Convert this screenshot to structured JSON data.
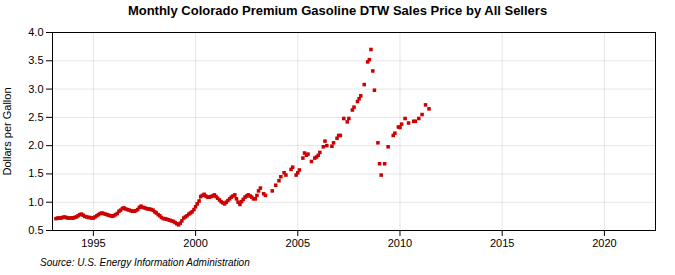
{
  "chart_data": {
    "type": "scatter",
    "title": "Monthly Colorado Premium Gasoline DTW Sales Price by All Sellers",
    "ylabel": "Dollars per Gallon",
    "source": "Source: U.S. Energy Information Administration",
    "xlim": [
      1993.0,
      2022.5
    ],
    "ylim": [
      0.5,
      4.0
    ],
    "xticks": [
      1995,
      2000,
      2005,
      2010,
      2015,
      2020
    ],
    "yticks": [
      0.5,
      {
        "value": 1.0,
        "label": "1.0"
      },
      1.5,
      {
        "value": 2.0,
        "label": "2.0"
      },
      2.5,
      {
        "value": 3.0,
        "label": "3.0"
      },
      3.5,
      {
        "value": 4.0,
        "label": "4.0"
      }
    ],
    "grid": true,
    "series": [
      {
        "type": "line",
        "marker": "square",
        "line_style": "solid",
        "color": "#cc0000",
        "x": [
          1993.17,
          1993.25,
          1993.33,
          1993.42,
          1993.5,
          1993.58,
          1993.67,
          1993.75,
          1993.83,
          1993.92,
          1994.0,
          1994.08,
          1994.17,
          1994.25,
          1994.33,
          1994.42,
          1994.5,
          1994.58,
          1994.67,
          1994.75,
          1994.83,
          1994.92,
          1995.0,
          1995.08,
          1995.17,
          1995.25,
          1995.33,
          1995.42,
          1995.5,
          1995.58,
          1995.67,
          1995.75,
          1995.83,
          1995.92,
          1996.0,
          1996.08,
          1996.17,
          1996.25,
          1996.33,
          1996.42,
          1996.5,
          1996.58,
          1996.67,
          1996.75,
          1996.83,
          1996.92,
          1997.0,
          1997.08,
          1997.17,
          1997.25,
          1997.33,
          1997.42,
          1997.5,
          1997.58,
          1997.67,
          1997.75,
          1997.83,
          1997.92,
          1998.0,
          1998.08,
          1998.17,
          1998.25,
          1998.33,
          1998.42,
          1998.5,
          1998.58,
          1998.67,
          1998.75,
          1998.83,
          1998.92,
          1999.0,
          1999.08,
          1999.17,
          1999.25,
          1999.33,
          1999.42,
          1999.5,
          1999.58,
          1999.67,
          1999.75,
          1999.83,
          1999.92,
          2000.0,
          2000.08,
          2000.17,
          2000.25,
          2000.33,
          2000.42,
          2000.5,
          2000.58,
          2000.67,
          2000.75,
          2000.83,
          2000.92,
          2001.0,
          2001.08,
          2001.17,
          2001.25,
          2001.33,
          2001.42,
          2001.5,
          2001.58,
          2001.67,
          2001.75,
          2001.83,
          2001.92,
          2002.0,
          2002.08,
          2002.17,
          2002.25,
          2002.33,
          2002.42,
          2002.5,
          2002.58,
          2002.67,
          2002.75,
          2002.83,
          2002.92
        ],
        "values": [
          0.71,
          0.72,
          0.72,
          0.72,
          0.73,
          0.74,
          0.73,
          0.72,
          0.72,
          0.72,
          0.72,
          0.73,
          0.74,
          0.76,
          0.78,
          0.79,
          0.77,
          0.75,
          0.74,
          0.73,
          0.73,
          0.72,
          0.72,
          0.74,
          0.76,
          0.78,
          0.8,
          0.81,
          0.8,
          0.79,
          0.78,
          0.77,
          0.76,
          0.75,
          0.76,
          0.78,
          0.8,
          0.84,
          0.86,
          0.89,
          0.9,
          0.88,
          0.87,
          0.86,
          0.85,
          0.84,
          0.84,
          0.85,
          0.87,
          0.91,
          0.93,
          0.91,
          0.9,
          0.89,
          0.88,
          0.88,
          0.87,
          0.86,
          0.83,
          0.81,
          0.78,
          0.76,
          0.73,
          0.71,
          0.71,
          0.7,
          0.69,
          0.68,
          0.67,
          0.66,
          0.64,
          0.62,
          0.6,
          0.63,
          0.67,
          0.72,
          0.74,
          0.76,
          0.79,
          0.81,
          0.83,
          0.87,
          0.92,
          0.97,
          1.02,
          1.1,
          1.12,
          1.14,
          1.11,
          1.09,
          1.09,
          1.1,
          1.11,
          1.13,
          1.1,
          1.07,
          1.04,
          1.01,
          0.99,
          0.97,
          1.0,
          1.03,
          1.06,
          1.09,
          1.11,
          1.13,
          1.06,
          1.0,
          0.96,
          1.01,
          1.05,
          1.09,
          1.11,
          1.13,
          1.11,
          1.09,
          1.06,
          1.06
        ]
      },
      {
        "type": "scatter",
        "marker": "square",
        "color": "#cc0000",
        "x": [
          2003.0,
          2003.08,
          2003.17,
          2003.33,
          2003.42,
          2003.75,
          2003.92,
          2004.08,
          2004.17,
          2004.33,
          2004.42,
          2004.67,
          2004.75,
          2004.92,
          2005.0,
          2005.08,
          2005.25,
          2005.33,
          2005.42,
          2005.5,
          2005.67,
          2005.83,
          2005.92,
          2006.0,
          2006.08,
          2006.25,
          2006.33,
          2006.42,
          2006.67,
          2006.75,
          2006.92,
          2007.0,
          2007.08,
          2007.25,
          2007.42,
          2007.5,
          2007.67,
          2007.75,
          2007.92,
          2008.0,
          2008.08,
          2008.25,
          2008.42,
          2008.5,
          2008.58,
          2008.67,
          2008.75,
          2008.92,
          2009.0,
          2009.08,
          2009.25,
          2009.42,
          2009.67,
          2009.75,
          2009.92,
          2010.0,
          2010.08,
          2010.25,
          2010.42,
          2010.67,
          2010.75,
          2010.92,
          2011.08,
          2011.25,
          2011.42
        ],
        "values": [
          1.12,
          1.2,
          1.25,
          1.15,
          1.12,
          1.2,
          1.3,
          1.38,
          1.45,
          1.52,
          1.48,
          1.58,
          1.62,
          1.48,
          1.52,
          1.57,
          1.78,
          1.87,
          1.83,
          1.85,
          1.72,
          1.78,
          1.8,
          1.83,
          1.88,
          1.98,
          2.08,
          2.0,
          1.99,
          2.05,
          2.13,
          2.18,
          2.18,
          2.48,
          2.42,
          2.48,
          2.63,
          2.68,
          2.78,
          2.83,
          2.88,
          3.08,
          3.48,
          3.52,
          3.7,
          3.32,
          2.98,
          2.05,
          1.68,
          1.48,
          1.68,
          1.98,
          2.18,
          2.22,
          2.33,
          2.32,
          2.38,
          2.48,
          2.4,
          2.43,
          2.43,
          2.48,
          2.55,
          2.72,
          2.65
        ]
      }
    ]
  }
}
